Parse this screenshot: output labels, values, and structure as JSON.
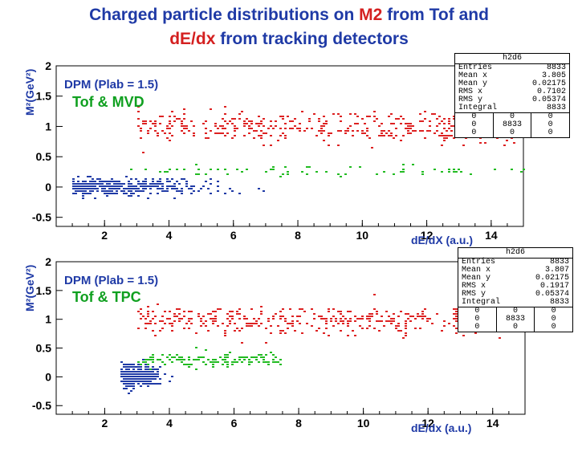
{
  "title": {
    "line1_a": "Charged particle distributions on ",
    "line1_b": "M2",
    "line1_c": " from Tof and",
    "line2_a": "dE/dx",
    "line2_b": " from tracking detectors"
  },
  "colors": {
    "title": "#1f3aa6",
    "highlight": "#d42020",
    "protons": "#dd2222",
    "kaons": "#22bb22",
    "pions": "#1f3aa6"
  },
  "chart_data": [
    {
      "type": "scatter",
      "annotation": "DPM (Plab = 1.5)",
      "detector": "Tof &  MVD",
      "xlabel": "dE/dX (a.u.)",
      "ylabel": "M²(GeV²)",
      "xlim": [
        0.5,
        15
      ],
      "ylim": [
        -0.65,
        2
      ],
      "xticks": [
        2,
        4,
        6,
        8,
        10,
        12,
        14
      ],
      "yticks": [
        -0.5,
        0,
        0.5,
        1,
        1.5,
        2
      ],
      "series": [
        {
          "color": "#dd2222",
          "y_center": 1.0,
          "y_spread": 0.22,
          "x_range": [
            3.0,
            15
          ],
          "density": "high"
        },
        {
          "color": "#22bb22",
          "y_center": 0.28,
          "y_spread": 0.08,
          "x_range": [
            2.5,
            15
          ],
          "density": "low"
        },
        {
          "color": "#1f3aa6",
          "y_center": 0.02,
          "y_spread": 0.12,
          "x_range": [
            1.0,
            8.0
          ],
          "density": "high"
        }
      ],
      "stats": {
        "name": "h2d6",
        "rows": [
          {
            "label": "Entries",
            "value": "8833"
          },
          {
            "label": "Mean x",
            "value": "3.805"
          },
          {
            "label": "Mean y",
            "value": "0.02175"
          },
          {
            "label": "RMS x",
            "value": "0.7102"
          },
          {
            "label": "RMS y",
            "value": "0.05374"
          },
          {
            "label": "Integral",
            "value": "8833"
          }
        ],
        "grid": [
          [
            "0",
            "0",
            "0"
          ],
          [
            "0",
            "8833",
            "0"
          ],
          [
            "0",
            "0",
            "0"
          ]
        ]
      }
    },
    {
      "type": "scatter",
      "annotation": "DPM (Plab = 1.5)",
      "detector": "Tof &  TPC",
      "xlabel": "dE/dx (a.u.)",
      "ylabel": "M²(GeV²)",
      "xlim": [
        0.5,
        15
      ],
      "ylim": [
        -0.65,
        2
      ],
      "xticks": [
        2,
        4,
        6,
        8,
        10,
        12,
        14
      ],
      "yticks": [
        -0.5,
        0,
        0.5,
        1,
        1.5,
        2
      ],
      "series": [
        {
          "color": "#dd2222",
          "y_center": 1.0,
          "y_spread": 0.22,
          "x_range": [
            3.0,
            15
          ],
          "density": "high"
        },
        {
          "color": "#22bb22",
          "y_center": 0.3,
          "y_spread": 0.12,
          "x_range": [
            3.0,
            7.5
          ],
          "density": "medium"
        },
        {
          "color": "#1f3aa6",
          "y_center": 0.02,
          "y_spread": 0.15,
          "x_range": [
            2.5,
            4.5
          ],
          "density": "high"
        }
      ],
      "stats": {
        "name": "h2d6",
        "rows": [
          {
            "label": "Entries",
            "value": "8833"
          },
          {
            "label": "Mean x",
            "value": "3.807"
          },
          {
            "label": "Mean y",
            "value": "0.02175"
          },
          {
            "label": "RMS x",
            "value": "0.1917"
          },
          {
            "label": "RMS y",
            "value": "0.05374"
          },
          {
            "label": "Integral",
            "value": "8833"
          }
        ],
        "grid": [
          [
            "0",
            "0",
            "0"
          ],
          [
            "0",
            "8833",
            "0"
          ],
          [
            "0",
            "0",
            "0"
          ]
        ]
      }
    }
  ]
}
